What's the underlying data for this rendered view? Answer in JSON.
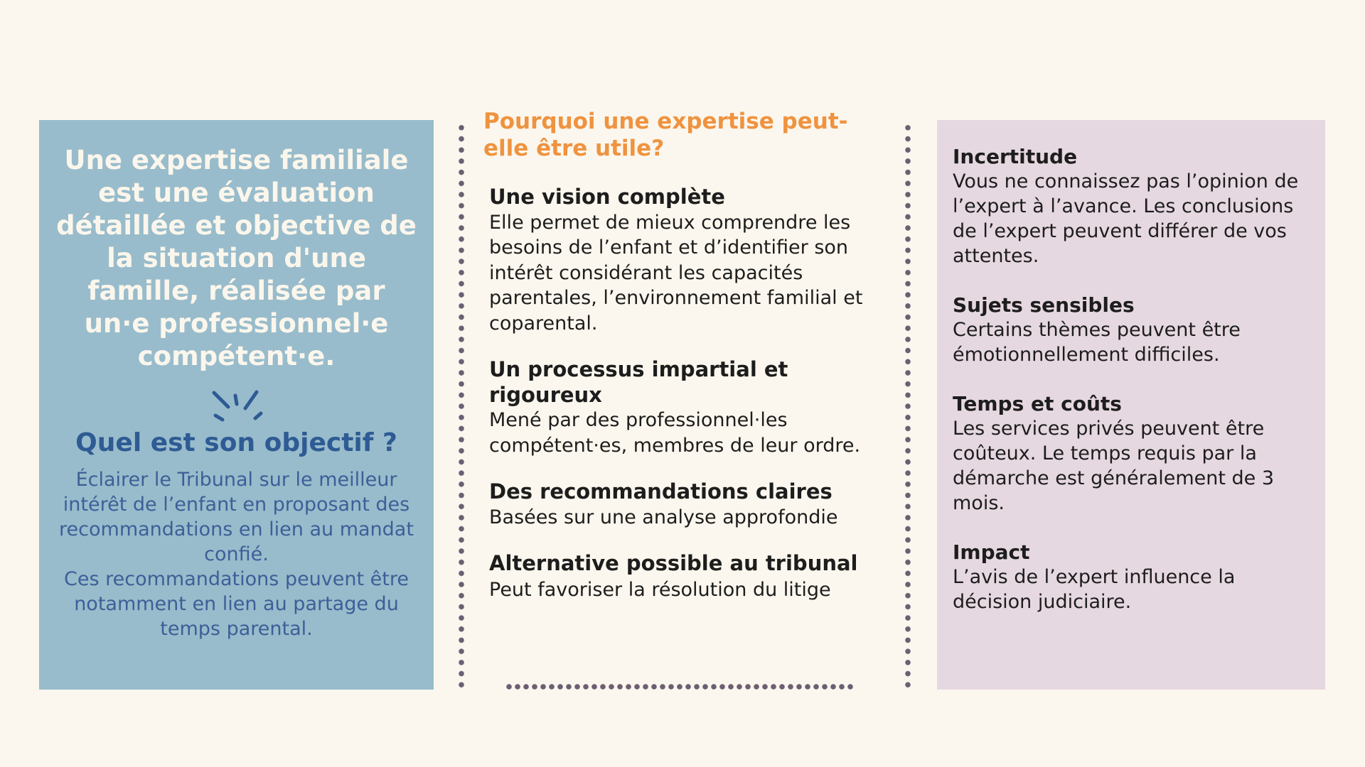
{
  "left": {
    "lead": "Une expertise familiale est une évaluation détaillée et objective de la situation d'une famille, réalisée par un·e professionnel·e compétent·e.",
    "question": "Quel est son objectif ?",
    "objective": "Éclairer le Tribunal sur le meilleur intérêt de l’enfant en proposant des recommandations en lien au mandat confié.",
    "objective2": "Ces recommandations peuvent être notamment en lien au partage du temps parental.",
    "colors": {
      "panel": "#98bccb",
      "heading": "#2e5b94"
    }
  },
  "middle": {
    "title": "Pourquoi une expertise peut-elle être utile?",
    "items": [
      {
        "title": "Une vision complète",
        "text": "Elle permet de mieux comprendre les besoins de l’enfant et d’identifier son intérêt considérant les capacités parentales, l’environnement familial et coparental."
      },
      {
        "title": "Un processus impartial et rigoureux",
        "text": "Mené par des professionnel·les compétent·es, membres de leur ordre."
      },
      {
        "title": "Des recommandations claires",
        "text": "Basées sur une analyse approfondie"
      },
      {
        "title": "Alternative possible au tribunal",
        "text": "Peut favoriser la résolution du litige"
      }
    ],
    "colors": {
      "title": "#ef9340"
    }
  },
  "right": {
    "items": [
      {
        "title": "Incertitude",
        "text": "Vous ne connaissez pas l’opinion de l’expert à l’avance. Les conclusions de l’expert peuvent différer de vos attentes."
      },
      {
        "title": "Sujets sensibles",
        "text": "Certains thèmes peuvent être émotionnellement difficiles."
      },
      {
        "title": "Temps et coûts",
        "text": "Les services privés peuvent être coûteux. Le temps requis par la démarche est généralement de 3 mois."
      },
      {
        "title": "Impact",
        "text": "L’avis de l’expert influence la décision judiciaire."
      }
    ],
    "colors": {
      "panel": "#e6d8e0"
    }
  }
}
